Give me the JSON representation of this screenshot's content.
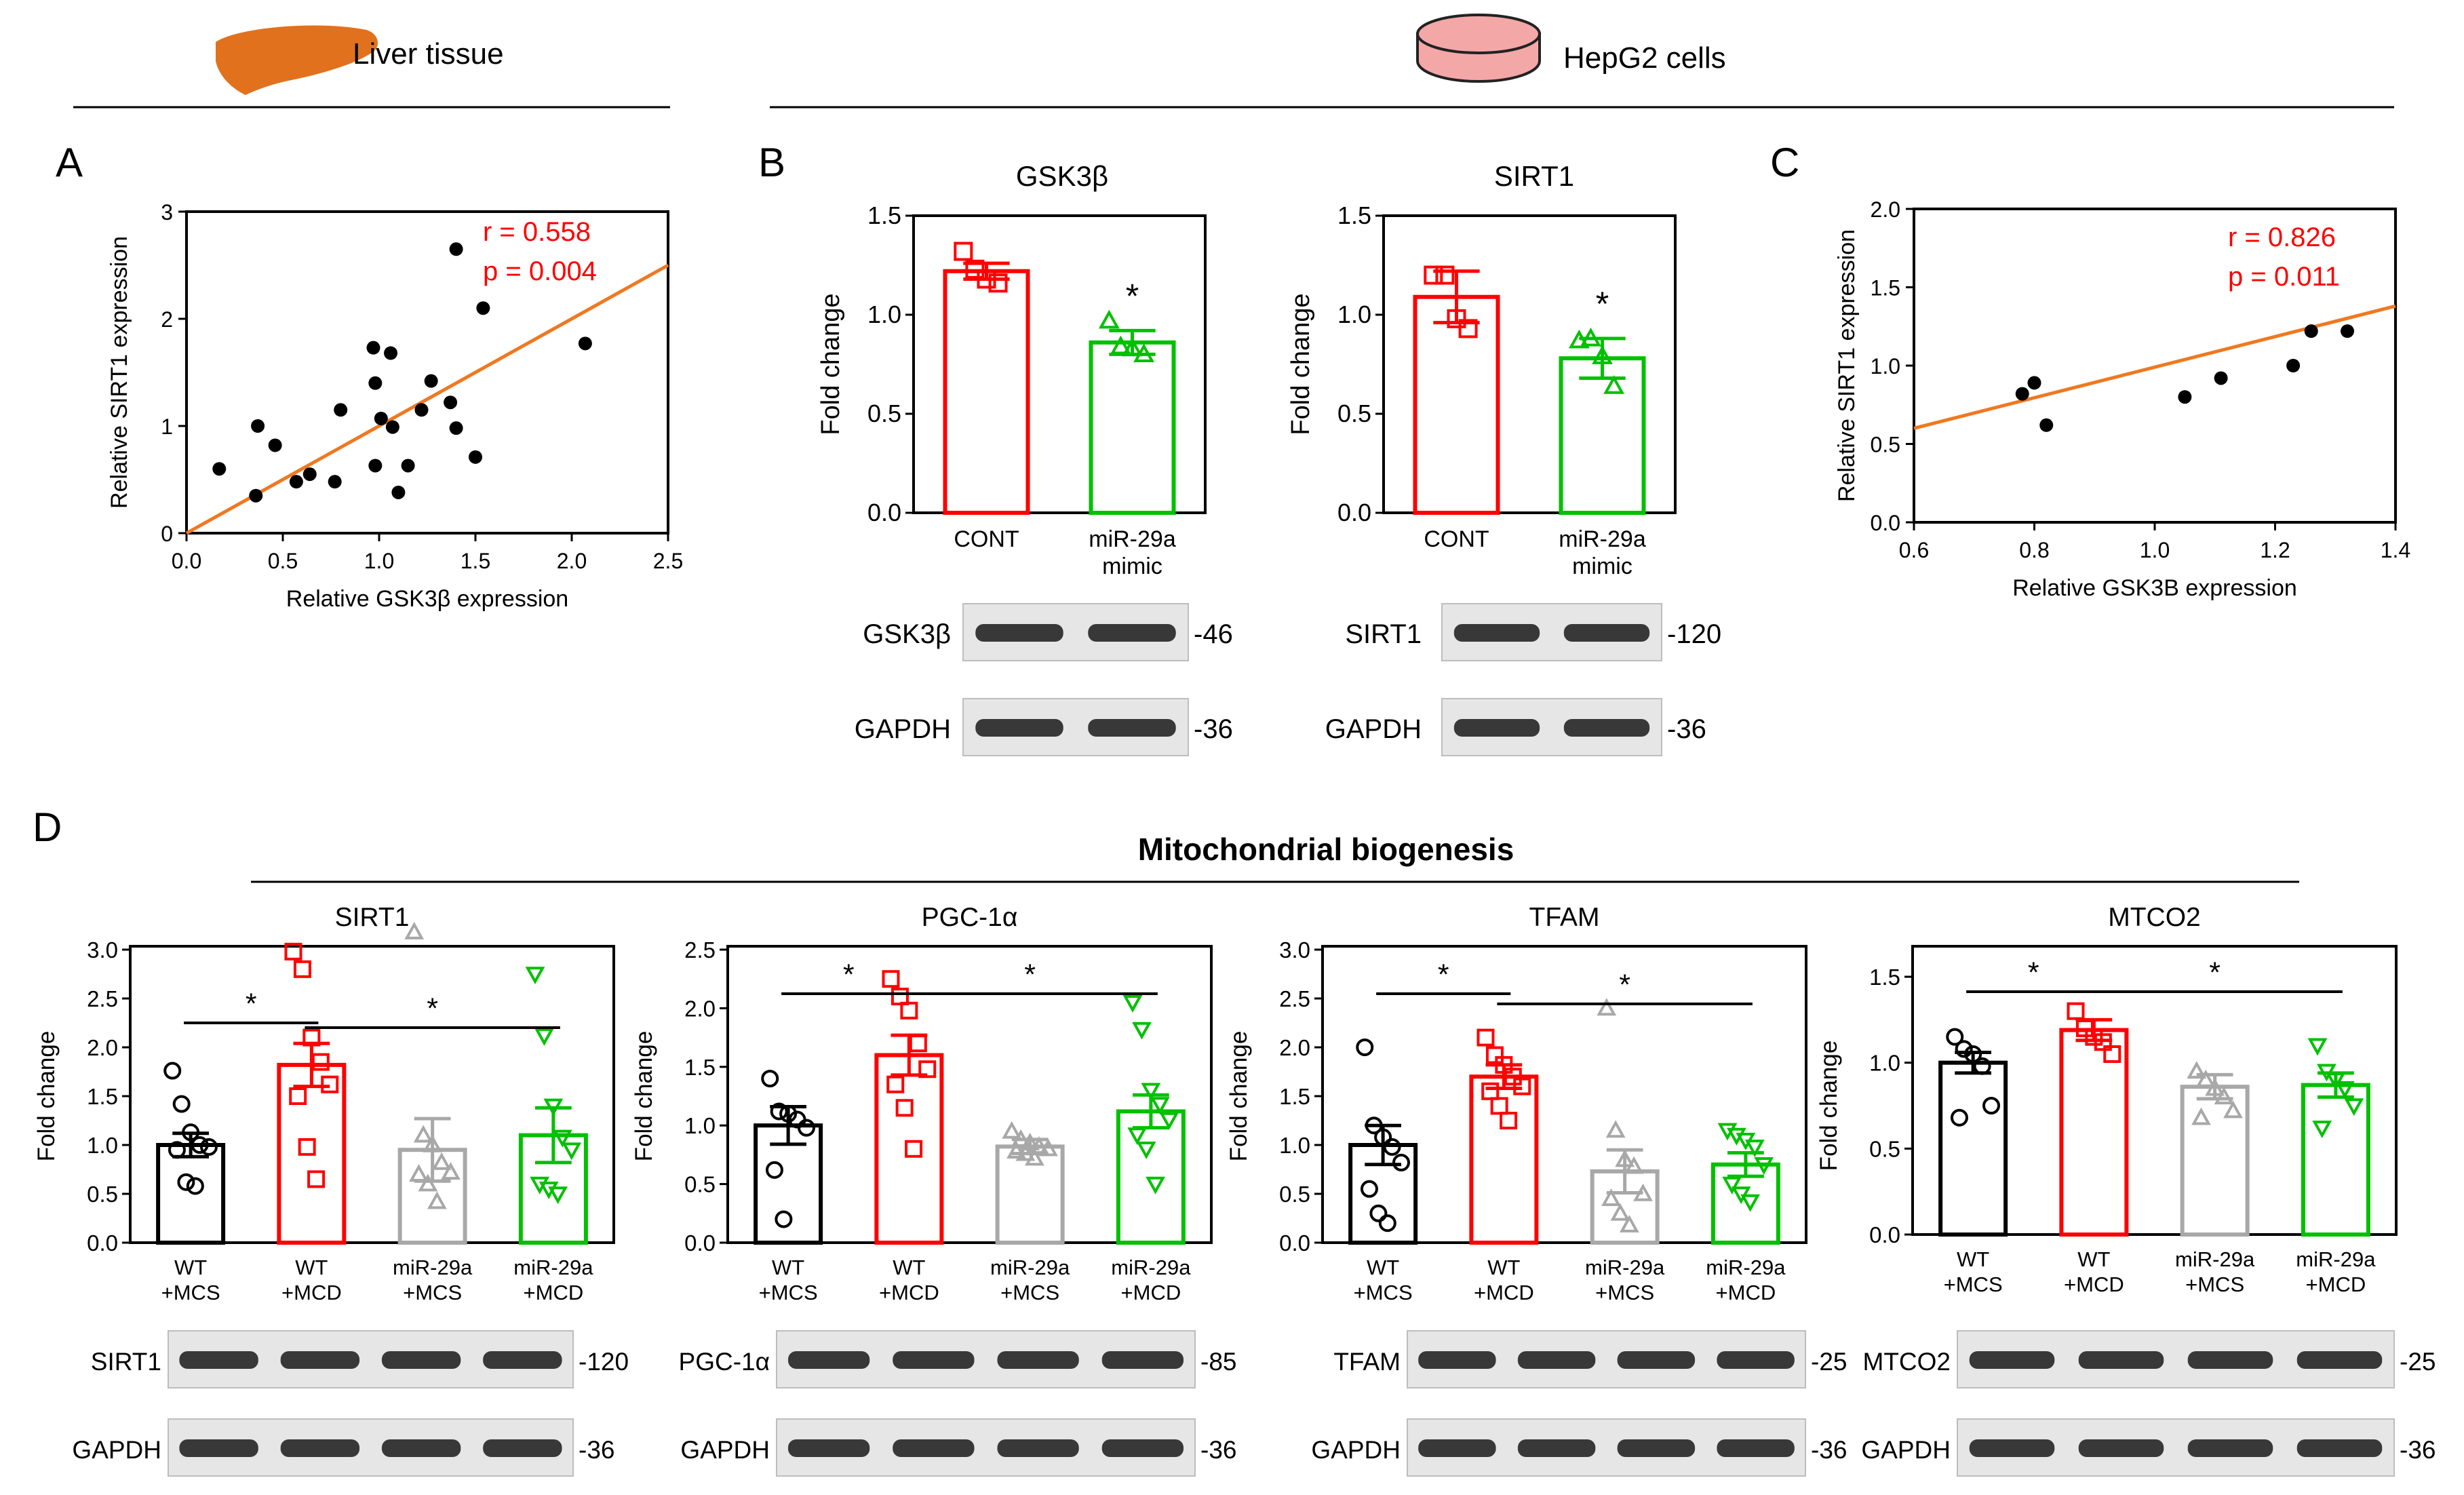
{
  "header": {
    "liver_label": "Liver tissue",
    "hepg2_label": "HepG2 cells",
    "liver_icon": "liver-icon",
    "dish_icon": "petri-dish-icon",
    "liver_color": "#E2711D",
    "dish_fill": "#F4A7A7",
    "dish_stroke": "#222222"
  },
  "colors": {
    "red": "#FF0000",
    "green": "#00C000",
    "gray": "#A8A8A8",
    "black": "#000000",
    "orange": "#F07820"
  },
  "panels": {
    "A": "A",
    "B": "B",
    "C": "C",
    "D": "D",
    "section_title": "Mitochondrial biogenesis"
  },
  "chart_data": [
    {
      "id": "A",
      "type": "scatter",
      "title": "",
      "xlabel": "Relative GSK3β expression",
      "ylabel": "Relative SIRT1 expression",
      "xlim": [
        0.0,
        2.5
      ],
      "ylim": [
        0,
        3
      ],
      "xticks": [
        "0.0",
        "0.5",
        "1.0",
        "1.5",
        "2.0",
        "2.5"
      ],
      "yticks": [
        "0",
        "1",
        "2",
        "3"
      ],
      "r_text": "r = 0.558",
      "p_text": "p = 0.004",
      "fit": {
        "x": [
          0.0,
          2.5
        ],
        "y": [
          0.0,
          2.5
        ]
      },
      "points": [
        [
          0.17,
          0.6
        ],
        [
          0.36,
          0.35
        ],
        [
          0.37,
          1.0
        ],
        [
          0.46,
          0.82
        ],
        [
          0.57,
          0.48
        ],
        [
          0.64,
          0.55
        ],
        [
          0.77,
          0.48
        ],
        [
          0.8,
          1.15
        ],
        [
          0.97,
          1.73
        ],
        [
          0.98,
          1.4
        ],
        [
          0.98,
          0.63
        ],
        [
          1.01,
          1.07
        ],
        [
          1.06,
          1.68
        ],
        [
          1.07,
          0.99
        ],
        [
          1.1,
          0.38
        ],
        [
          1.15,
          0.63
        ],
        [
          1.22,
          1.15
        ],
        [
          1.27,
          1.42
        ],
        [
          1.37,
          1.22
        ],
        [
          1.4,
          0.98
        ],
        [
          1.4,
          2.65
        ],
        [
          1.5,
          0.71
        ],
        [
          1.54,
          2.1
        ],
        [
          2.07,
          1.77
        ]
      ]
    },
    {
      "id": "B1",
      "type": "bar",
      "title": "GSK3β",
      "ylabel": "Fold change",
      "ylim": [
        0.0,
        1.5
      ],
      "yticks": [
        "0.0",
        "0.5",
        "1.0",
        "1.5"
      ],
      "categories": [
        "CONT",
        "miR-29a mimic"
      ],
      "values": [
        1.22,
        0.86
      ],
      "errors": [
        0.04,
        0.06
      ],
      "points": [
        [
          1.32,
          1.23,
          1.18,
          1.16
        ],
        [
          0.97,
          0.84,
          0.83,
          0.8
        ]
      ],
      "significance": [
        "",
        "*"
      ],
      "blot": {
        "rows": [
          {
            "protein": "GSK3β",
            "kda": "-46"
          },
          {
            "protein": "GAPDH",
            "kda": "-36"
          }
        ]
      }
    },
    {
      "id": "B2",
      "type": "bar",
      "title": "SIRT1",
      "ylabel": "Fold change",
      "ylim": [
        0.0,
        1.5
      ],
      "yticks": [
        "0.0",
        "0.5",
        "1.0",
        "1.5"
      ],
      "categories": [
        "CONT",
        "miR-29a mimic"
      ],
      "values": [
        1.09,
        0.78
      ],
      "errors": [
        0.13,
        0.1
      ],
      "points": [
        [
          1.2,
          1.2,
          0.98,
          0.93
        ],
        [
          0.87,
          0.88,
          0.79,
          0.64
        ]
      ],
      "significance": [
        "",
        "*"
      ],
      "blot": {
        "rows": [
          {
            "protein": "SIRT1",
            "kda": "-120"
          },
          {
            "protein": "GAPDH",
            "kda": "-36"
          }
        ]
      }
    },
    {
      "id": "C",
      "type": "scatter",
      "title": "",
      "xlabel": "Relative GSK3B expression",
      "ylabel": "Relative SIRT1 expression",
      "xlim": [
        0.6,
        1.4
      ],
      "ylim": [
        0.0,
        2.0
      ],
      "xticks": [
        "0.6",
        "0.8",
        "1.0",
        "1.2",
        "1.4"
      ],
      "yticks": [
        "0.0",
        "0.5",
        "1.0",
        "1.5",
        "2.0"
      ],
      "r_text": "r = 0.826",
      "p_text": "p = 0.011",
      "fit": {
        "x": [
          0.6,
          1.4
        ],
        "y": [
          0.6,
          1.38
        ]
      },
      "points": [
        [
          0.78,
          0.82
        ],
        [
          0.8,
          0.89
        ],
        [
          0.82,
          0.62
        ],
        [
          1.05,
          0.8
        ],
        [
          1.11,
          0.92
        ],
        [
          1.23,
          1.0
        ],
        [
          1.26,
          1.22
        ],
        [
          1.32,
          1.22
        ]
      ]
    },
    {
      "id": "D1",
      "type": "bar",
      "title": "SIRT1",
      "ylabel": "Fold change",
      "ylim": [
        0.0,
        3.0
      ],
      "yticks": [
        "0.0",
        "0.5",
        "1.0",
        "1.5",
        "2.0",
        "2.5",
        "3.0"
      ],
      "categories": [
        "WT +MCS",
        "WT +MCD",
        "miR-29a +MCS",
        "miR-29a +MCD"
      ],
      "values": [
        1.0,
        1.82,
        0.95,
        1.1
      ],
      "errors": [
        0.12,
        0.22,
        0.32,
        0.28
      ],
      "points": [
        [
          1.76,
          1.42,
          1.13,
          1.0,
          0.98,
          0.95,
          0.62,
          0.58
        ],
        [
          2.98,
          2.8,
          2.1,
          1.85,
          1.62,
          1.5,
          0.98,
          0.65
        ],
        [
          3.18,
          1.1,
          1.0,
          0.82,
          0.72,
          0.7,
          0.6,
          0.42
        ],
        [
          2.75,
          2.12,
          1.4,
          1.08,
          0.95,
          0.6,
          0.55,
          0.5
        ]
      ],
      "bracket_label": "*",
      "brackets": [
        [
          0,
          1
        ],
        [
          1,
          3
        ]
      ],
      "blot": {
        "rows": [
          {
            "protein": "SIRT1",
            "kda": "-120"
          },
          {
            "protein": "GAPDH",
            "kda": "-36"
          }
        ]
      }
    },
    {
      "id": "D2",
      "type": "bar",
      "title": "PGC-1α",
      "ylabel": "Fold change",
      "ylim": [
        0.0,
        2.5
      ],
      "yticks": [
        "0.0",
        "0.5",
        "1.0",
        "1.5",
        "2.0",
        "2.5"
      ],
      "categories": [
        "WT +MCS",
        "WT +MCD",
        "miR-29a +MCS",
        "miR-29a +MCD"
      ],
      "values": [
        1.0,
        1.6,
        0.82,
        1.12
      ],
      "errors": [
        0.16,
        0.17,
        0.06,
        0.14
      ],
      "points": [
        [
          1.4,
          1.12,
          1.1,
          1.05,
          0.98,
          0.62,
          0.2
        ],
        [
          2.25,
          2.1,
          1.98,
          1.7,
          1.48,
          1.35,
          1.15,
          0.8
        ],
        [
          0.95,
          0.88,
          0.85,
          0.82,
          0.8,
          0.78,
          0.76,
          0.72
        ],
        [
          2.05,
          1.82,
          1.3,
          1.18,
          1.05,
          0.92,
          0.8,
          0.5
        ]
      ],
      "bracket_label": "*",
      "brackets": [
        [
          0,
          1
        ],
        [
          1,
          3
        ]
      ],
      "blot": {
        "rows": [
          {
            "protein": "PGC-1α",
            "kda": "-85"
          },
          {
            "protein": "GAPDH",
            "kda": "-36"
          }
        ]
      }
    },
    {
      "id": "D3",
      "type": "bar",
      "title": "TFAM",
      "ylabel": "Fold change",
      "ylim": [
        0.0,
        3.0
      ],
      "yticks": [
        "0.0",
        "0.5",
        "1.0",
        "1.5",
        "2.0",
        "2.5",
        "3.0"
      ],
      "categories": [
        "WT +MCS",
        "WT +MCD",
        "miR-29a +MCS",
        "miR-29a +MCD"
      ],
      "values": [
        1.0,
        1.7,
        0.73,
        0.8
      ],
      "errors": [
        0.2,
        0.12,
        0.22,
        0.12
      ],
      "points": [
        [
          2.0,
          1.2,
          1.08,
          0.98,
          0.82,
          0.55,
          0.3,
          0.2
        ],
        [
          2.1,
          1.92,
          1.82,
          1.7,
          1.6,
          1.55,
          1.4,
          1.25
        ],
        [
          2.4,
          1.15,
          0.85,
          0.78,
          0.5,
          0.45,
          0.3,
          0.18
        ],
        [
          1.15,
          1.1,
          1.05,
          0.98,
          0.8,
          0.6,
          0.5,
          0.42
        ]
      ],
      "bracket_label": "*",
      "brackets": [
        [
          0,
          1
        ],
        [
          1,
          3
        ]
      ],
      "blot": {
        "rows": [
          {
            "protein": "TFAM",
            "kda": "-25"
          },
          {
            "protein": "GAPDH",
            "kda": "-36"
          }
        ]
      }
    },
    {
      "id": "D4",
      "type": "bar",
      "title": "MTCO2",
      "ylabel": "Fold change",
      "ylim": [
        0.0,
        1.5
      ],
      "yticks": [
        "0.0",
        "0.5",
        "1.0",
        "1.5"
      ],
      "categories": [
        "WT +MCS",
        "WT +MCD",
        "miR-29a +MCS",
        "miR-29a +MCD"
      ],
      "values": [
        1.0,
        1.19,
        0.86,
        0.87
      ],
      "errors": [
        0.06,
        0.06,
        0.07,
        0.07
      ],
      "points": [
        [
          1.15,
          1.08,
          1.05,
          0.98,
          0.75,
          0.68
        ],
        [
          1.3,
          1.2,
          1.15,
          1.12,
          1.05
        ],
        [
          0.95,
          0.9,
          0.85,
          0.8,
          0.72,
          0.68
        ],
        [
          1.1,
          0.95,
          0.9,
          0.85,
          0.75,
          0.62
        ]
      ],
      "bracket_label": "*",
      "brackets": [
        [
          0,
          1
        ],
        [
          1,
          3
        ]
      ],
      "blot": {
        "rows": [
          {
            "protein": "MTCO2",
            "kda": "-25"
          },
          {
            "protein": "GAPDH",
            "kda": "-36"
          }
        ]
      }
    }
  ]
}
